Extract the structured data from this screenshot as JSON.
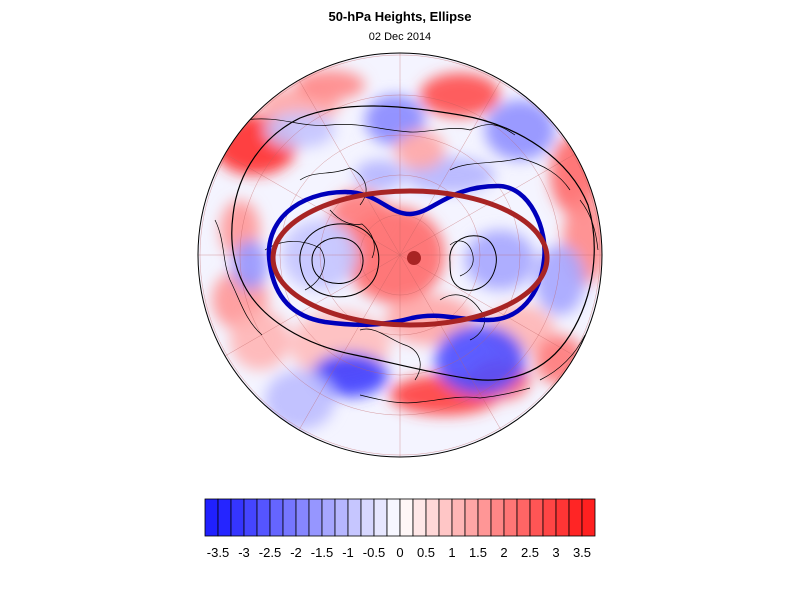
{
  "header": {
    "title": "50-hPa Heights, Ellipse",
    "date": "02 Dec 2014"
  },
  "map": {
    "projection": "north-polar-stereographic",
    "colors": {
      "positive": "#ff2020",
      "negative": "#2020ff",
      "coastline": "#000000",
      "graticule": "#c06060",
      "contour": "#000000",
      "vortex_edge": "#0000bb",
      "ellipse": "#a82424",
      "centroid": "#a82424"
    }
  },
  "colorbar": {
    "tick_labels": [
      "-3.5",
      "-3",
      "-2.5",
      "-2",
      "-1.5",
      "-1",
      "-0.5",
      "0",
      "0.5",
      "1",
      "1.5",
      "2",
      "2.5",
      "3",
      "3.5"
    ],
    "levels": [
      -3.75,
      -3.5,
      -3.25,
      -3,
      -2.75,
      -2.5,
      -2.25,
      -2,
      -1.75,
      -1.5,
      -1.25,
      -1,
      -0.75,
      -0.5,
      -0.25,
      0,
      0.25,
      0.5,
      0.75,
      1,
      1.25,
      1.5,
      1.75,
      2,
      2.25,
      2.5,
      2.75,
      3,
      3.25,
      3.5,
      3.75
    ]
  }
}
